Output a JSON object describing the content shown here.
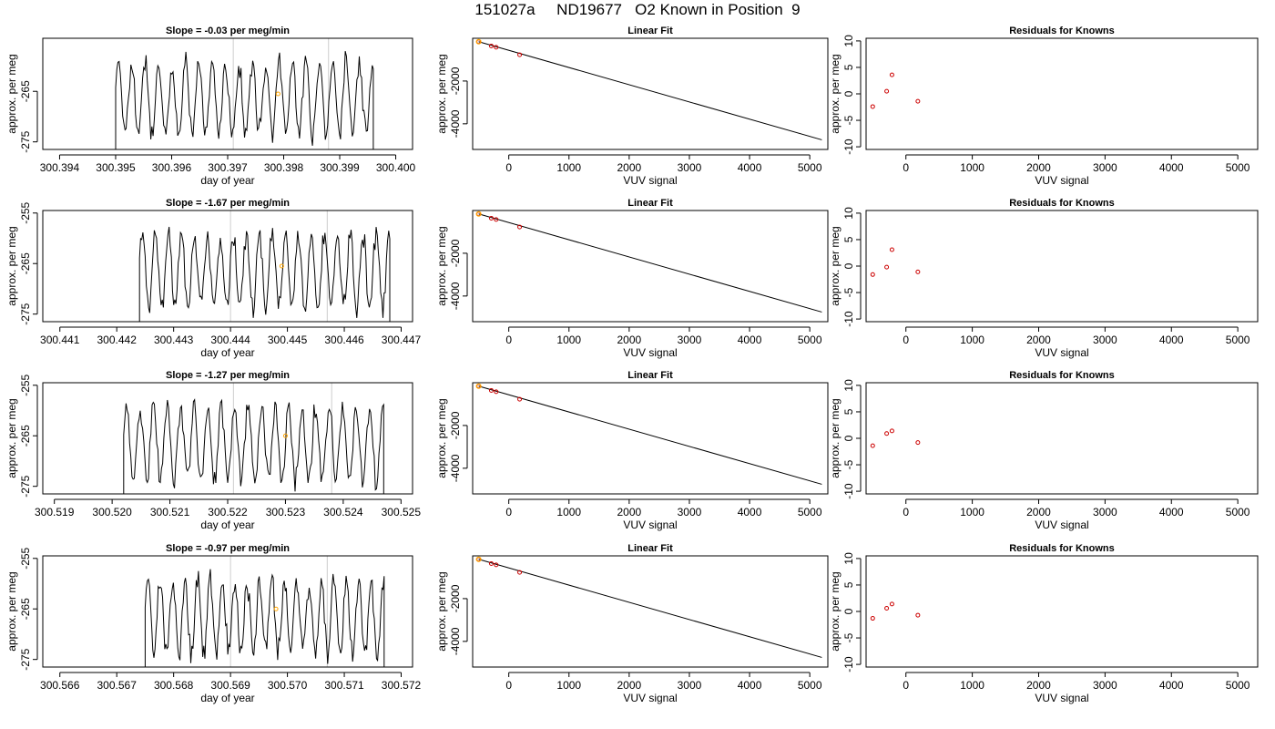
{
  "page": {
    "title": "151027a     ND19677   O2 Known in Position  9"
  },
  "colors": {
    "trace": "#000000",
    "marker": "#ffa500",
    "residual": "#cc0000",
    "vline": "#cccccc",
    "fitline": "#000000"
  },
  "chart_data": [
    {
      "type": "line",
      "title": "Slope =  -0.03  per meg/min",
      "xlabel": "day of year",
      "ylabel": "approx. per meg",
      "xlim": [
        300.3937,
        300.4003
      ],
      "ylim": [
        -276.5,
        -254.5
      ],
      "xticks": [
        "300.394",
        "300.395",
        "300.396",
        "300.397",
        "300.398",
        "300.399",
        "300.400"
      ],
      "xtick_values": [
        300.394,
        300.395,
        300.396,
        300.397,
        300.398,
        300.399,
        300.4
      ],
      "yticks": [
        "-265",
        "-275"
      ],
      "ytick_values": [
        -265,
        -275
      ],
      "trace_start": 300.395,
      "trace_end": 300.3996,
      "vlines": [
        300.3971,
        300.3988
      ],
      "marker": {
        "x": 300.3979,
        "y": -265.5
      }
    },
    {
      "type": "scatter",
      "title": "Linear Fit",
      "xlabel": "VUV signal",
      "ylabel": "approx. per meg",
      "xlim": [
        -600,
        5300
      ],
      "ylim": [
        -5200,
        0
      ],
      "xticks": [
        "0",
        "1000",
        "2000",
        "3000",
        "4000",
        "5000"
      ],
      "xtick_values": [
        0,
        1000,
        2000,
        3000,
        4000,
        5000
      ],
      "yticks": [
        "-2000",
        "-4000"
      ],
      "ytick_values": [
        -2000,
        -4000
      ],
      "points": [
        [
          -500,
          -160
        ],
        [
          -290,
          -360
        ],
        [
          -210,
          -420
        ],
        [
          180,
          -770
        ]
      ],
      "highlight": [
        -500,
        -160
      ],
      "fit_line": [
        [
          -500,
          -160
        ],
        [
          5200,
          -4750
        ]
      ]
    },
    {
      "type": "scatter",
      "title": "Residuals for Knowns",
      "xlabel": "VUV signal",
      "ylabel": "approx. per meg",
      "xlim": [
        -600,
        5300
      ],
      "ylim": [
        -10.5,
        10.5
      ],
      "xticks": [
        "0",
        "1000",
        "2000",
        "3000",
        "4000",
        "5000"
      ],
      "xtick_values": [
        0,
        1000,
        2000,
        3000,
        4000,
        5000
      ],
      "yticks": [
        "10",
        "5",
        "0",
        "-5",
        "-10"
      ],
      "ytick_values": [
        10,
        5,
        0,
        -5,
        -10
      ],
      "points": [
        [
          -500,
          -2.4
        ],
        [
          -290,
          0.5
        ],
        [
          -210,
          3.6
        ],
        [
          180,
          -1.4
        ]
      ]
    },
    {
      "type": "line",
      "title": "Slope =  -1.67  per meg/min",
      "xlabel": "day of year",
      "ylabel": "approx. per meg",
      "xlim": [
        300.4407,
        300.4472
      ],
      "ylim": [
        -276.5,
        -254.5
      ],
      "xticks": [
        "300.441",
        "300.442",
        "300.443",
        "300.444",
        "300.445",
        "300.446",
        "300.447"
      ],
      "xtick_values": [
        300.441,
        300.442,
        300.443,
        300.444,
        300.445,
        300.446,
        300.447
      ],
      "yticks": [
        "-255",
        "-265",
        "-275"
      ],
      "ytick_values": [
        -255,
        -265,
        -275
      ],
      "trace_start": 300.4424,
      "trace_end": 300.4468,
      "vlines": [
        300.444,
        300.4457
      ],
      "marker": {
        "x": 300.4449,
        "y": -265.5
      }
    },
    {
      "type": "scatter",
      "title": "Linear Fit",
      "xlabel": "VUV signal",
      "ylabel": "approx. per meg",
      "xlim": [
        -600,
        5300
      ],
      "ylim": [
        -5200,
        0
      ],
      "xticks": [
        "0",
        "1000",
        "2000",
        "3000",
        "4000",
        "5000"
      ],
      "xtick_values": [
        0,
        1000,
        2000,
        3000,
        4000,
        5000
      ],
      "yticks": [
        "-2000",
        "-4000"
      ],
      "ytick_values": [
        -2000,
        -4000
      ],
      "points": [
        [
          -500,
          -160
        ],
        [
          -290,
          -360
        ],
        [
          -210,
          -420
        ],
        [
          180,
          -770
        ]
      ],
      "highlight": [
        -500,
        -160
      ],
      "fit_line": [
        [
          -500,
          -160
        ],
        [
          5200,
          -4750
        ]
      ]
    },
    {
      "type": "scatter",
      "title": "Residuals for Knowns",
      "xlabel": "VUV signal",
      "ylabel": "approx. per meg",
      "xlim": [
        -600,
        5300
      ],
      "ylim": [
        -10.5,
        10.5
      ],
      "xticks": [
        "0",
        "1000",
        "2000",
        "3000",
        "4000",
        "5000"
      ],
      "xtick_values": [
        0,
        1000,
        2000,
        3000,
        4000,
        5000
      ],
      "yticks": [
        "10",
        "5",
        "0",
        "-5",
        "-10"
      ],
      "ytick_values": [
        10,
        5,
        0,
        -5,
        -10
      ],
      "points": [
        [
          -500,
          -1.6
        ],
        [
          -290,
          -0.2
        ],
        [
          -210,
          3.1
        ],
        [
          180,
          -1.1
        ]
      ]
    },
    {
      "type": "line",
      "title": "Slope =  -1.27  per meg/min",
      "xlabel": "day of year",
      "ylabel": "approx. per meg",
      "xlim": [
        300.5188,
        300.5252
      ],
      "ylim": [
        -276.5,
        -254.5
      ],
      "xticks": [
        "300.519",
        "300.520",
        "300.521",
        "300.522",
        "300.523",
        "300.524",
        "300.525"
      ],
      "xtick_values": [
        300.519,
        300.52,
        300.521,
        300.522,
        300.523,
        300.524,
        300.525
      ],
      "yticks": [
        "-255",
        "-265",
        "-275"
      ],
      "ytick_values": [
        -255,
        -265,
        -275
      ],
      "trace_start": 300.5202,
      "trace_end": 300.5247,
      "vlines": [
        300.5221,
        300.5238
      ],
      "marker": {
        "x": 300.523,
        "y": -265.0
      }
    },
    {
      "type": "scatter",
      "title": "Linear Fit",
      "xlabel": "VUV signal",
      "ylabel": "approx. per meg",
      "xlim": [
        -600,
        5300
      ],
      "ylim": [
        -5200,
        0
      ],
      "xticks": [
        "0",
        "1000",
        "2000",
        "3000",
        "4000",
        "5000"
      ],
      "xtick_values": [
        0,
        1000,
        2000,
        3000,
        4000,
        5000
      ],
      "yticks": [
        "-2000",
        "-4000"
      ],
      "ytick_values": [
        -2000,
        -4000
      ],
      "points": [
        [
          -500,
          -160
        ],
        [
          -290,
          -360
        ],
        [
          -210,
          -420
        ],
        [
          180,
          -770
        ]
      ],
      "highlight": [
        -500,
        -160
      ],
      "fit_line": [
        [
          -500,
          -160
        ],
        [
          5200,
          -4750
        ]
      ]
    },
    {
      "type": "scatter",
      "title": "Residuals for Knowns",
      "xlabel": "VUV signal",
      "ylabel": "approx. per meg",
      "xlim": [
        -600,
        5300
      ],
      "ylim": [
        -10.5,
        10.5
      ],
      "xticks": [
        "0",
        "1000",
        "2000",
        "3000",
        "4000",
        "5000"
      ],
      "xtick_values": [
        0,
        1000,
        2000,
        3000,
        4000,
        5000
      ],
      "yticks": [
        "10",
        "5",
        "0",
        "-5",
        "-10"
      ],
      "ytick_values": [
        10,
        5,
        0,
        -5,
        -10
      ],
      "points": [
        [
          -500,
          -1.4
        ],
        [
          -290,
          0.9
        ],
        [
          -210,
          1.4
        ],
        [
          180,
          -0.8
        ]
      ]
    },
    {
      "type": "line",
      "title": "Slope =  -0.97  per meg/min",
      "xlabel": "day of year",
      "ylabel": "approx. per meg",
      "xlim": [
        300.5657,
        300.5722
      ],
      "ylim": [
        -276.5,
        -254.5
      ],
      "xticks": [
        "300.566",
        "300.567",
        "300.568",
        "300.569",
        "300.570",
        "300.571",
        "300.572"
      ],
      "xtick_values": [
        300.566,
        300.567,
        300.568,
        300.569,
        300.57,
        300.571,
        300.572
      ],
      "yticks": [
        "-255",
        "-265",
        "-275"
      ],
      "ytick_values": [
        -255,
        -265,
        -275
      ],
      "trace_start": 300.5675,
      "trace_end": 300.5717,
      "vlines": [
        300.569,
        300.5707
      ],
      "marker": {
        "x": 300.5698,
        "y": -265.0
      }
    },
    {
      "type": "scatter",
      "title": "Linear Fit",
      "xlabel": "VUV signal",
      "ylabel": "approx. per meg",
      "xlim": [
        -600,
        5300
      ],
      "ylim": [
        -5200,
        0
      ],
      "xticks": [
        "0",
        "1000",
        "2000",
        "3000",
        "4000",
        "5000"
      ],
      "xtick_values": [
        0,
        1000,
        2000,
        3000,
        4000,
        5000
      ],
      "yticks": [
        "-2000",
        "-4000"
      ],
      "ytick_values": [
        -2000,
        -4000
      ],
      "points": [
        [
          -500,
          -160
        ],
        [
          -290,
          -360
        ],
        [
          -210,
          -420
        ],
        [
          180,
          -770
        ]
      ],
      "highlight": [
        -500,
        -160
      ],
      "fit_line": [
        [
          -500,
          -160
        ],
        [
          5200,
          -4750
        ]
      ]
    },
    {
      "type": "scatter",
      "title": "Residuals for Knowns",
      "xlabel": "VUV signal",
      "ylabel": "approx. per meg",
      "xlim": [
        -600,
        5300
      ],
      "ylim": [
        -10.5,
        10.5
      ],
      "xticks": [
        "0",
        "1000",
        "2000",
        "3000",
        "4000",
        "5000"
      ],
      "xtick_values": [
        0,
        1000,
        2000,
        3000,
        4000,
        5000
      ],
      "yticks": [
        "10",
        "5",
        "0",
        "-5",
        "-10"
      ],
      "ytick_values": [
        10,
        5,
        0,
        -5,
        -10
      ],
      "points": [
        [
          -500,
          -1.3
        ],
        [
          -290,
          0.6
        ],
        [
          -210,
          1.4
        ],
        [
          180,
          -0.7
        ]
      ]
    }
  ]
}
